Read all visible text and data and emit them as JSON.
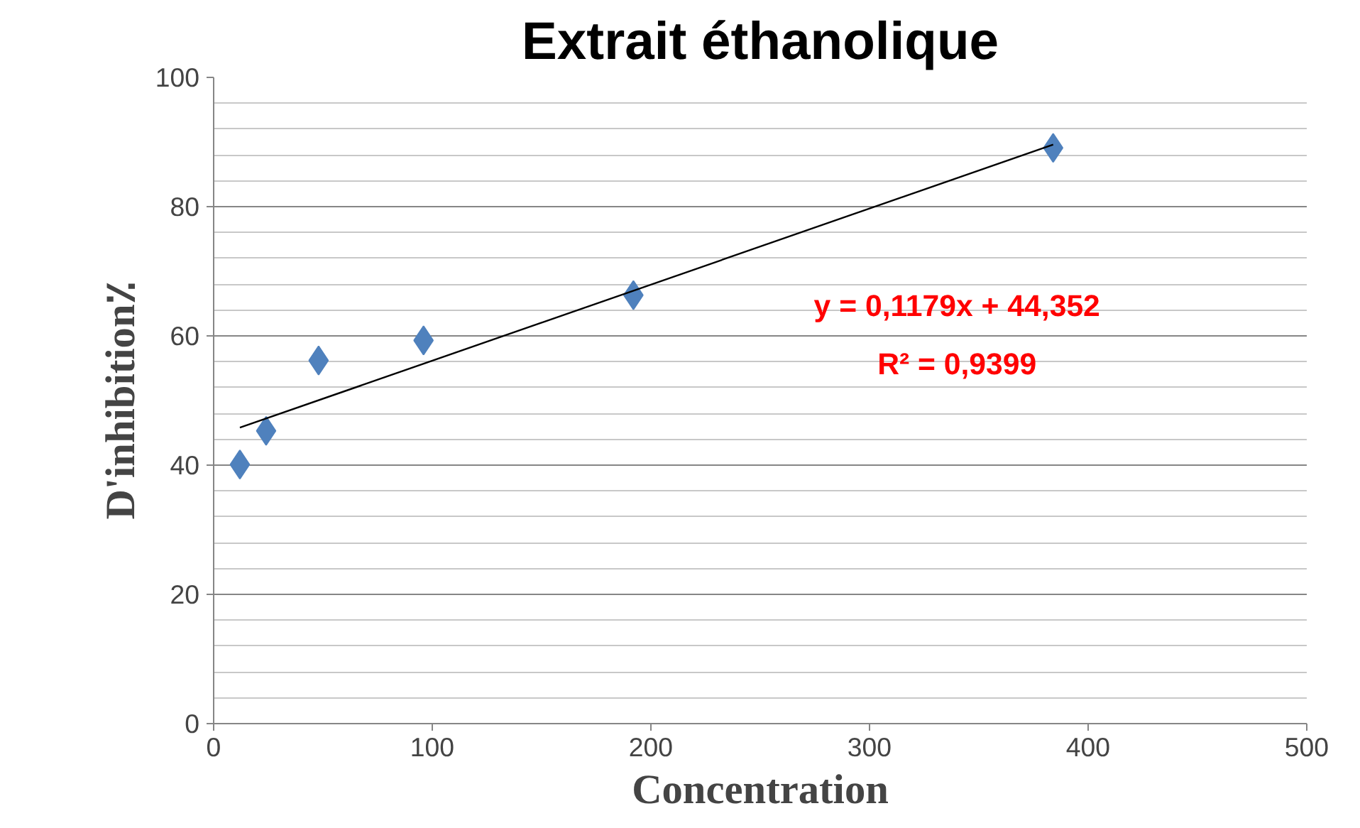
{
  "chart_data": {
    "type": "scatter",
    "title": "Extrait éthanolique",
    "xlabel": "Concentration",
    "ylabel": "D'inhibition٪",
    "xlim": [
      0,
      500
    ],
    "xticks": [
      0,
      100,
      200,
      300,
      400,
      500
    ],
    "ylim": [
      0,
      100
    ],
    "yticks": [
      0,
      20,
      40,
      60,
      80,
      100
    ],
    "grid": "y",
    "marker": "diamond",
    "series": [
      {
        "color": "#4f81bd",
        "x": [
          12,
          24,
          48,
          96,
          192,
          384
        ],
        "values": [
          40.1,
          45.3,
          56.2,
          59.3,
          66.3,
          89.1
        ]
      },
      {
        "type": "line",
        "color": "#000000",
        "marker": "none",
        "x": [
          12,
          384
        ],
        "values": [
          45.8,
          89.6
        ]
      }
    ],
    "annotations": [
      "y = 0,1179x + 44,352",
      "R² = 0,9399"
    ]
  }
}
